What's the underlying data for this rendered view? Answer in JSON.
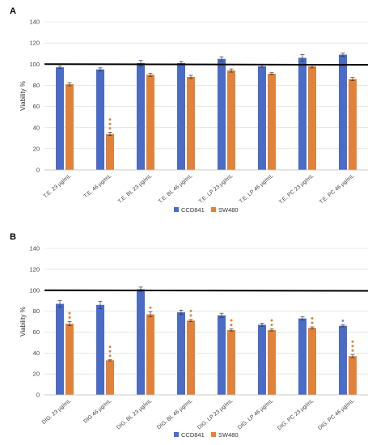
{
  "chart_data": [
    {
      "panel": "A",
      "type": "bar",
      "xlabel": "",
      "ylabel": "Viability %",
      "ylim": [
        0,
        140
      ],
      "yticks": [
        0,
        20,
        40,
        60,
        80,
        100,
        120,
        140
      ],
      "grid": true,
      "legend_position": "bottom",
      "reference_line": 100,
      "categories": [
        "T.E. 23 μg/mL",
        "T.E. 46 μg/mL",
        "T.E. BL 23 μg/mL",
        "T.E. BL 46 μg/mL",
        "T.E. LP 23 μg/mL",
        "T.E. LP 46 μg/mL",
        "T.E. PC 23 μg/mL",
        "T.E. PC 46 μg/mL"
      ],
      "series": [
        {
          "name": "CCD841",
          "color": "#4A6CC7",
          "values": [
            97,
            95,
            101,
            101,
            105,
            98,
            106,
            109
          ],
          "errors": [
            1,
            1.5,
            2.5,
            1.5,
            2,
            1,
            3,
            1.5
          ],
          "sig": [
            0,
            0,
            0,
            0,
            0,
            0,
            0,
            0
          ]
        },
        {
          "name": "SW480",
          "color": "#E0823A",
          "values": [
            81,
            34,
            90,
            88,
            94,
            91,
            98,
            86
          ],
          "errors": [
            1.5,
            1.5,
            1.5,
            1.5,
            1.5,
            1,
            1.5,
            1.5
          ],
          "sig": [
            0,
            3,
            0,
            0,
            0,
            0,
            0,
            0
          ]
        }
      ]
    },
    {
      "panel": "B",
      "type": "bar",
      "xlabel": "",
      "ylabel": "Viability %",
      "ylim": [
        0,
        140
      ],
      "yticks": [
        0,
        20,
        40,
        60,
        80,
        100,
        120,
        140
      ],
      "grid": true,
      "legend_position": "bottom",
      "reference_line": 100,
      "categories": [
        "DIG. 23 μg/mL",
        "DIG 46 μg/mL",
        "DIG. BL 23 μg/mL",
        "DIG. BL 46 μg/mL",
        "DIG. LP 23 μg/mL",
        "DIG. LP 46 μg/mL",
        "DIG. PC 23 μg/mL",
        "DIG. PC 46 μg/mL"
      ],
      "series": [
        {
          "name": "CCD841",
          "color": "#4A6CC7",
          "values": [
            87,
            86,
            101,
            79,
            76,
            67,
            73,
            66
          ],
          "errors": [
            3,
            3.5,
            2,
            2,
            2,
            1.5,
            1.5,
            1
          ],
          "sig": [
            0,
            0,
            0,
            0,
            0,
            0,
            0,
            1
          ]
        },
        {
          "name": "SW480",
          "color": "#E0823A",
          "values": [
            68,
            33,
            77,
            71,
            62,
            62,
            64,
            37
          ],
          "errors": [
            2,
            0.5,
            2.5,
            1,
            1,
            1,
            1,
            1.5
          ],
          "sig": [
            2,
            3,
            1,
            2,
            2,
            2,
            2,
            3
          ]
        }
      ]
    }
  ]
}
